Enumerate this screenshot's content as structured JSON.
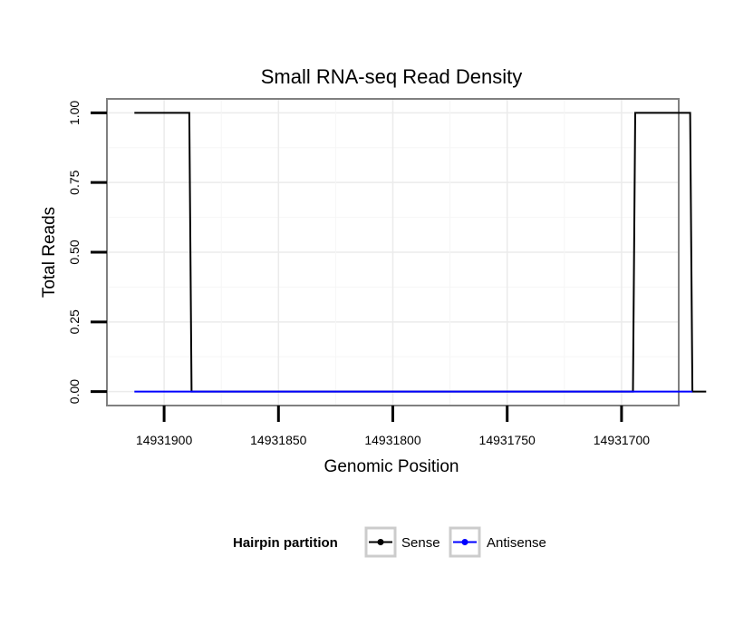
{
  "chart_data": {
    "type": "line",
    "title": "Small RNA-seq Read Density",
    "xlabel": "Genomic Position",
    "ylabel": "Total Reads",
    "x_reversed": true,
    "xlim": [
      14931925,
      14931675
    ],
    "ylim": [
      -0.05,
      1.05
    ],
    "x_ticks": [
      14931900,
      14931850,
      14931800,
      14931750,
      14931700
    ],
    "x_tick_labels": [
      "14931900",
      "14931850",
      "14931800",
      "14931750",
      "14931700"
    ],
    "y_ticks": [
      0,
      0.25,
      0.5,
      0.75,
      1.0
    ],
    "y_tick_labels": [
      "0.00",
      "0.25",
      "0.50",
      "0.75",
      "1.00"
    ],
    "grid": true,
    "legend": {
      "title": "Hairpin partition",
      "placement": "bottom",
      "entries": [
        "Sense",
        "Antisense"
      ]
    },
    "series": [
      {
        "name": "Sense",
        "color": "#000000",
        "x": [
          14931913,
          14931889,
          14931888,
          14931695,
          14931694,
          14931670,
          14931669,
          14931663
        ],
        "y": [
          1,
          1,
          0,
          0,
          1,
          1,
          0,
          0
        ]
      },
      {
        "name": "Antisense",
        "color": "#0000ff",
        "x": [
          14931913,
          14931888,
          14931694,
          14931669
        ],
        "y": [
          0,
          0,
          0,
          0
        ]
      }
    ]
  }
}
